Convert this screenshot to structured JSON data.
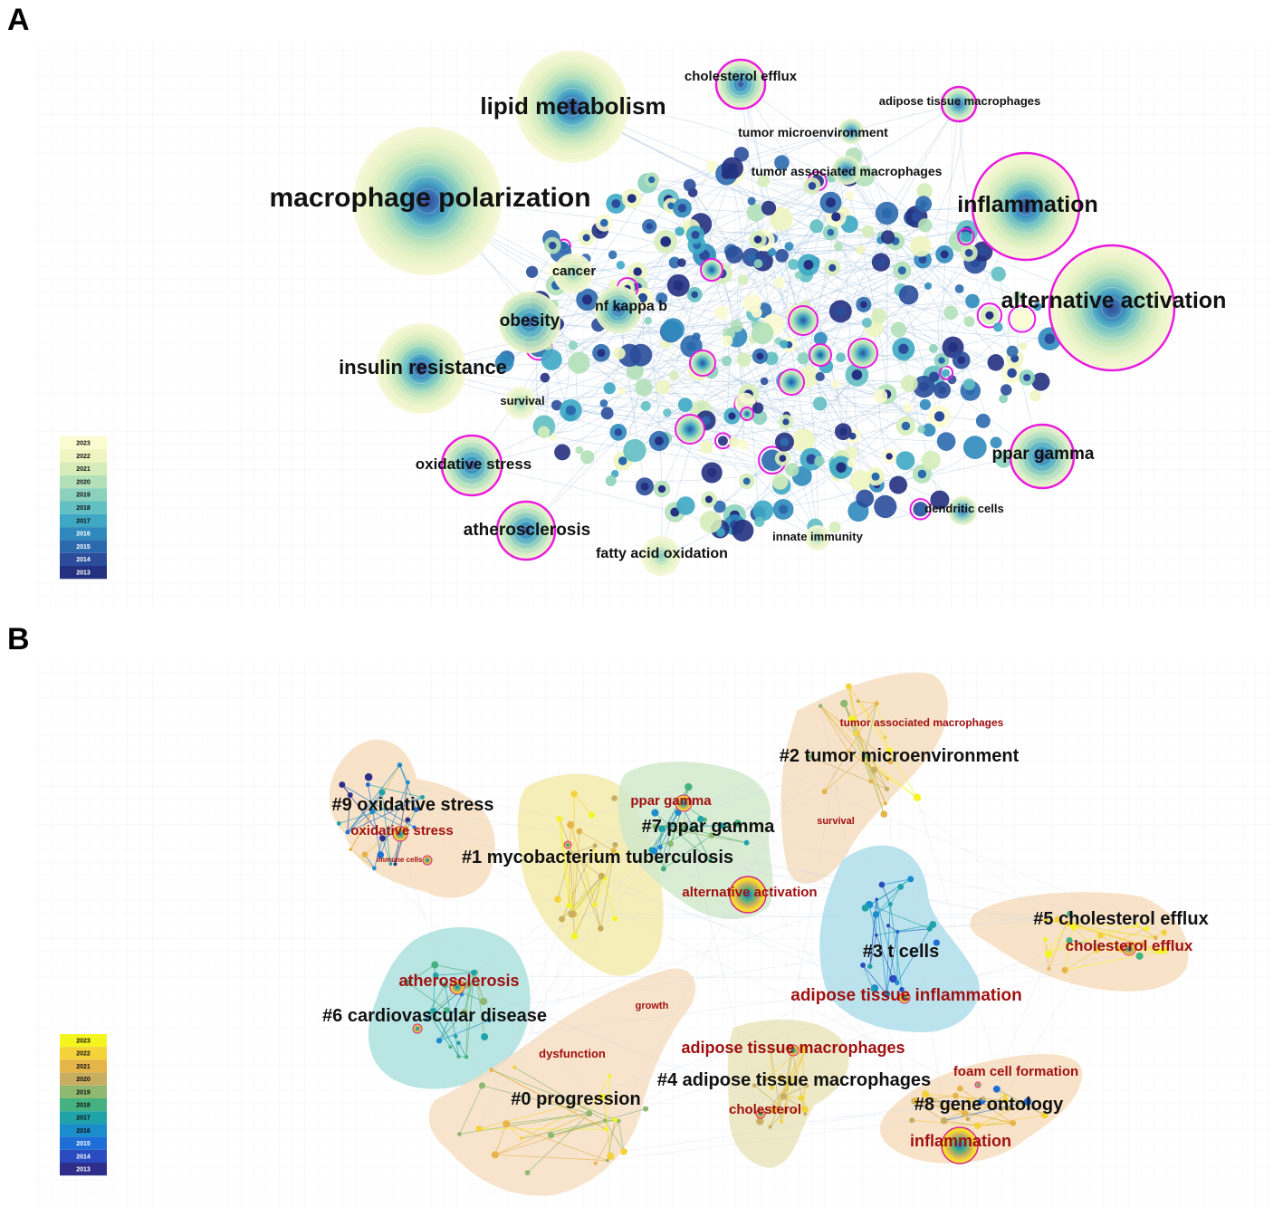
{
  "panel_a": {
    "letter": "A",
    "legend": [
      "2023",
      "2022",
      "2021",
      "2020",
      "2019",
      "2018",
      "2017",
      "2016",
      "2015",
      "2014",
      "2013"
    ],
    "legend_colors": [
      "#fbfbd0",
      "#eef5c0",
      "#d6edba",
      "#b3e0b8",
      "#8cd1bb",
      "#62bfc2",
      "#3ea8c4",
      "#2f89bd",
      "#2c6aae",
      "#2a4c9a",
      "#243080"
    ],
    "keywords": [
      {
        "label": "macrophage polarization",
        "size": "xl"
      },
      {
        "label": "lipid metabolism",
        "size": "l"
      },
      {
        "label": "inflammation",
        "size": "l"
      },
      {
        "label": "alternative activation",
        "size": "l"
      },
      {
        "label": "insulin resistance",
        "size": "m"
      },
      {
        "label": "obesity",
        "size": "m"
      },
      {
        "label": "ppar gamma",
        "size": "m"
      },
      {
        "label": "oxidative stress",
        "size": "s"
      },
      {
        "label": "atherosclerosis",
        "size": "m"
      },
      {
        "label": "fatty acid oxidation",
        "size": "s"
      },
      {
        "label": "cholesterol efflux",
        "size": "s"
      },
      {
        "label": "adipose tissue macrophages",
        "size": "xs"
      },
      {
        "label": "tumor microenvironment",
        "size": "xs"
      },
      {
        "label": "tumor associated macrophages",
        "size": "xs"
      },
      {
        "label": "cancer",
        "size": "s"
      },
      {
        "label": "nf kappa b",
        "size": "s"
      },
      {
        "label": "survival",
        "size": "xs"
      },
      {
        "label": "dendritic cells",
        "size": "xs"
      },
      {
        "label": "innate immunity",
        "size": "xs"
      }
    ]
  },
  "panel_b": {
    "letter": "B",
    "legend": [
      "2023",
      "2022",
      "2021",
      "2020",
      "2019",
      "2018",
      "2017",
      "2016",
      "2015",
      "2014",
      "2013"
    ],
    "legend_colors": [
      "#f5f520",
      "#f3d23a",
      "#e6b54a",
      "#c8ae60",
      "#8fb870",
      "#45b080",
      "#1fa3a8",
      "#1b8ccc",
      "#1f6ed8",
      "#2a4cc0",
      "#2e2e8a"
    ],
    "clusters": [
      {
        "label": "#0 progression"
      },
      {
        "label": "#1 mycobacterium tuberculosis"
      },
      {
        "label": "#2 tumor microenvironment"
      },
      {
        "label": "#3 t cells"
      },
      {
        "label": "#4 adipose tissue macrophages"
      },
      {
        "label": "#5 cholesterol efflux"
      },
      {
        "label": "#6 cardiovascular disease"
      },
      {
        "label": "#7 ppar gamma"
      },
      {
        "label": "#8 gene ontology"
      },
      {
        "label": "#9 oxidative stress"
      }
    ],
    "keywords": [
      {
        "label": "tumor associated macrophages"
      },
      {
        "label": "ppar gamma"
      },
      {
        "label": "oxidative stress"
      },
      {
        "label": "immune cells"
      },
      {
        "label": "survival"
      },
      {
        "label": "alternative activation"
      },
      {
        "label": "cholesterol efflux"
      },
      {
        "label": "atherosclerosis"
      },
      {
        "label": "adipose tissue inflammation"
      },
      {
        "label": "growth"
      },
      {
        "label": "dysfunction"
      },
      {
        "label": "adipose tissue macrophages"
      },
      {
        "label": "foam cell formation"
      },
      {
        "label": "cholesterol"
      },
      {
        "label": "inflammation"
      }
    ]
  }
}
